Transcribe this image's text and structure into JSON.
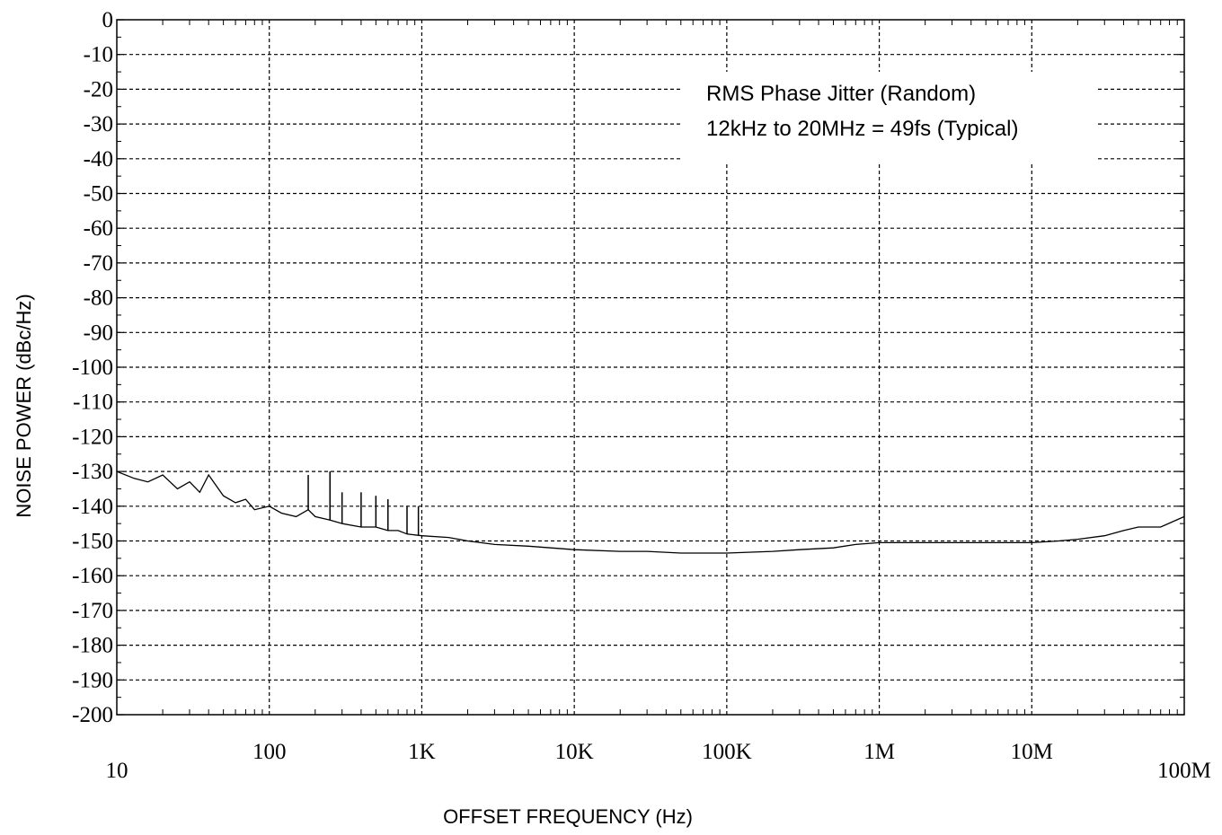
{
  "chart_data": {
    "type": "line",
    "xlabel": "OFFSET FREQUENCY (Hz)",
    "ylabel": "NOISE POWER (dBc/Hz)",
    "x_scale": "log",
    "xlim": [
      10,
      100000000
    ],
    "ylim": [
      -200,
      0
    ],
    "grid": true,
    "x_ticks": [
      {
        "value": 10,
        "label": "10"
      },
      {
        "value": 100,
        "label": "100"
      },
      {
        "value": 1000,
        "label": "1K"
      },
      {
        "value": 10000,
        "label": "10K"
      },
      {
        "value": 100000,
        "label": "100K"
      },
      {
        "value": 1000000,
        "label": "1M"
      },
      {
        "value": 10000000,
        "label": "10M"
      },
      {
        "value": 100000000,
        "label": "100M"
      }
    ],
    "y_ticks": [
      0,
      -10,
      -20,
      -30,
      -40,
      -50,
      -60,
      -70,
      -80,
      -90,
      -100,
      -110,
      -120,
      -130,
      -140,
      -150,
      -160,
      -170,
      -180,
      -190,
      -200
    ],
    "annotation": [
      "RMS Phase Jitter (Random)",
      "12kHz to 20MHz = 49fs (Typical)"
    ],
    "series": [
      {
        "color": "#000000",
        "x": [
          10,
          13,
          16,
          20,
          25,
          30,
          35,
          40,
          50,
          60,
          70,
          80,
          100,
          120,
          150,
          180,
          200,
          250,
          300,
          400,
          500,
          600,
          700,
          800,
          1000,
          1500,
          2000,
          3000,
          5000,
          7000,
          10000,
          20000,
          30000,
          50000,
          70000,
          100000,
          200000,
          300000,
          500000,
          700000,
          1000000,
          2000000,
          3000000,
          5000000,
          7000000,
          10000000,
          15000000,
          20000000,
          30000000,
          40000000,
          50000000,
          70000000,
          100000000
        ],
        "y": [
          -130,
          -132,
          -133,
          -131,
          -135,
          -133,
          -136,
          -131,
          -137,
          -139,
          -138,
          -141,
          -140,
          -142,
          -143,
          -141,
          -143,
          -144,
          -145,
          -146,
          -146,
          -147,
          -147,
          -148,
          -148.5,
          -149,
          -150,
          -151,
          -151.5,
          -152,
          -152.5,
          -153,
          -153,
          -153.5,
          -153.5,
          -153.5,
          -153,
          -152.5,
          -152,
          -151,
          -150.5,
          -150.5,
          -150.5,
          -150.5,
          -150.5,
          -150.5,
          -150,
          -149.5,
          -148.5,
          -147,
          -146,
          -146,
          -143
        ]
      }
    ],
    "spikes": [
      {
        "x": 180,
        "y": -131
      },
      {
        "x": 250,
        "y": -130
      },
      {
        "x": 300,
        "y": -136
      },
      {
        "x": 400,
        "y": -136
      },
      {
        "x": 500,
        "y": -137
      },
      {
        "x": 600,
        "y": -138
      },
      {
        "x": 800,
        "y": -140
      },
      {
        "x": 950,
        "y": -140
      }
    ]
  }
}
